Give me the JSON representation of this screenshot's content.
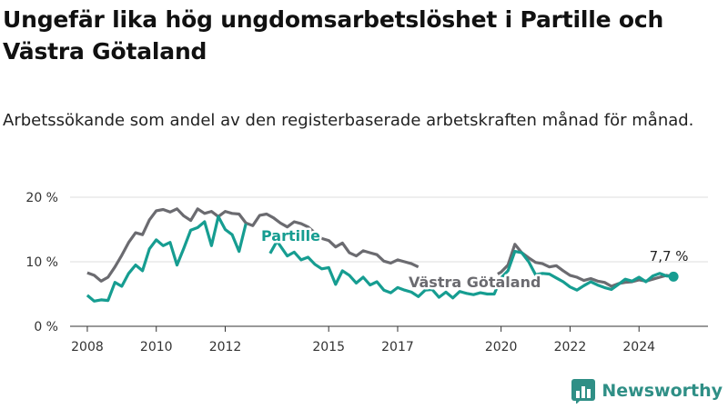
{
  "title": "Ungefär lika hög ungdomsarbetslöshet i Partille och Västra Götaland",
  "subtitle": "Arbetssökande som andel av den registerbaserade arbetskraften månad för månad.",
  "brand": {
    "name": "Newsworthy",
    "icon": "newsworthy-logo-icon"
  },
  "chart_data": {
    "type": "line",
    "x_unit": "year",
    "xlim": [
      2007.5,
      2026.0
    ],
    "ylim": [
      0,
      20
    ],
    "y_ticks": [
      0,
      10,
      20
    ],
    "y_tick_labels": [
      "0 %",
      "10 %",
      "20 %"
    ],
    "x_ticks": [
      2008,
      2010,
      2012,
      2015,
      2017,
      2020,
      2022,
      2024
    ],
    "x_tick_labels": [
      "2008",
      "2010",
      "2012",
      "2015",
      "2017",
      "2020",
      "2022",
      "2024"
    ],
    "grid": true,
    "end_label": "7,7 %",
    "series": [
      {
        "name": "Västra Götaland",
        "color": "#6b6b70",
        "points": [
          [
            2008.0,
            8.3
          ],
          [
            2008.2,
            7.9
          ],
          [
            2008.4,
            7.0
          ],
          [
            2008.6,
            7.6
          ],
          [
            2008.8,
            9.2
          ],
          [
            2009.0,
            11.0
          ],
          [
            2009.2,
            13.0
          ],
          [
            2009.4,
            14.5
          ],
          [
            2009.6,
            14.2
          ],
          [
            2009.8,
            16.5
          ],
          [
            2010.0,
            17.9
          ],
          [
            2010.2,
            18.1
          ],
          [
            2010.4,
            17.7
          ],
          [
            2010.6,
            18.2
          ],
          [
            2010.8,
            17.1
          ],
          [
            2011.0,
            16.4
          ],
          [
            2011.2,
            18.2
          ],
          [
            2011.4,
            17.5
          ],
          [
            2011.6,
            17.8
          ],
          [
            2011.8,
            17.0
          ],
          [
            2012.0,
            17.8
          ],
          [
            2012.2,
            17.5
          ],
          [
            2012.4,
            17.4
          ],
          [
            2012.6,
            16.0
          ],
          [
            2012.8,
            15.6
          ],
          [
            2013.0,
            17.2
          ],
          [
            2013.2,
            17.4
          ],
          [
            2013.4,
            16.8
          ],
          [
            2013.6,
            16.0
          ],
          [
            2013.8,
            15.4
          ],
          [
            2014.0,
            16.2
          ],
          [
            2014.2,
            15.9
          ],
          [
            2014.4,
            15.4
          ],
          [
            2014.6,
            14.5
          ],
          [
            2014.8,
            13.6
          ],
          [
            2015.0,
            13.3
          ],
          [
            2015.2,
            12.3
          ],
          [
            2015.4,
            12.9
          ],
          [
            2015.6,
            11.4
          ],
          [
            2015.8,
            10.9
          ],
          [
            2016.0,
            11.7
          ],
          [
            2016.2,
            11.4
          ],
          [
            2016.4,
            11.1
          ],
          [
            2016.6,
            10.1
          ],
          [
            2016.8,
            9.8
          ],
          [
            2017.0,
            10.3
          ],
          [
            2017.2,
            10.0
          ],
          [
            2017.4,
            9.7
          ],
          [
            2017.6,
            9.2
          ]
        ],
        "points_2": [
          [
            2019.9,
            8.1
          ],
          [
            2020.0,
            8.4
          ],
          [
            2020.2,
            9.5
          ],
          [
            2020.4,
            12.7
          ],
          [
            2020.6,
            11.4
          ],
          [
            2020.8,
            10.6
          ],
          [
            2021.0,
            9.9
          ],
          [
            2021.2,
            9.7
          ],
          [
            2021.4,
            9.2
          ],
          [
            2021.6,
            9.4
          ],
          [
            2021.8,
            8.6
          ],
          [
            2022.0,
            7.9
          ],
          [
            2022.2,
            7.6
          ],
          [
            2022.4,
            7.1
          ],
          [
            2022.6,
            7.4
          ],
          [
            2022.8,
            7.0
          ],
          [
            2023.0,
            6.8
          ],
          [
            2023.2,
            6.2
          ],
          [
            2023.4,
            6.6
          ],
          [
            2023.6,
            6.8
          ],
          [
            2023.8,
            6.9
          ],
          [
            2024.0,
            7.2
          ],
          [
            2024.2,
            7.0
          ],
          [
            2024.4,
            7.3
          ],
          [
            2024.6,
            7.6
          ],
          [
            2024.8,
            7.9
          ],
          [
            2025.0,
            7.7
          ]
        ]
      },
      {
        "name": "Partille",
        "color": "#169d91",
        "points": [
          [
            2008.0,
            4.8
          ],
          [
            2008.2,
            3.9
          ],
          [
            2008.4,
            4.1
          ],
          [
            2008.6,
            4.0
          ],
          [
            2008.8,
            6.8
          ],
          [
            2009.0,
            6.2
          ],
          [
            2009.2,
            8.2
          ],
          [
            2009.4,
            9.5
          ],
          [
            2009.6,
            8.6
          ],
          [
            2009.8,
            12.0
          ],
          [
            2010.0,
            13.4
          ],
          [
            2010.2,
            12.5
          ],
          [
            2010.4,
            13.0
          ],
          [
            2010.6,
            9.5
          ],
          [
            2010.8,
            12.1
          ],
          [
            2011.0,
            14.9
          ],
          [
            2011.2,
            15.3
          ],
          [
            2011.4,
            16.2
          ],
          [
            2011.6,
            12.5
          ],
          [
            2011.8,
            17.0
          ],
          [
            2012.0,
            15.0
          ],
          [
            2012.2,
            14.2
          ],
          [
            2012.4,
            11.6
          ],
          [
            2012.6,
            15.9
          ],
          [
            2013.3,
            11.3
          ],
          [
            2013.5,
            13.2
          ],
          [
            2013.8,
            10.9
          ],
          [
            2014.0,
            11.5
          ],
          [
            2014.2,
            10.3
          ],
          [
            2014.4,
            10.7
          ],
          [
            2014.6,
            9.6
          ],
          [
            2014.8,
            8.9
          ],
          [
            2015.0,
            9.1
          ],
          [
            2015.2,
            6.5
          ],
          [
            2015.4,
            8.6
          ],
          [
            2015.6,
            7.9
          ],
          [
            2015.8,
            6.7
          ],
          [
            2016.0,
            7.6
          ],
          [
            2016.2,
            6.4
          ],
          [
            2016.4,
            6.9
          ],
          [
            2016.6,
            5.6
          ],
          [
            2016.8,
            5.2
          ],
          [
            2017.0,
            6.0
          ],
          [
            2017.2,
            5.6
          ],
          [
            2017.4,
            5.3
          ],
          [
            2017.6,
            4.6
          ],
          [
            2017.8,
            5.6
          ],
          [
            2018.0,
            5.7
          ],
          [
            2018.2,
            4.5
          ],
          [
            2018.4,
            5.3
          ],
          [
            2018.6,
            4.4
          ],
          [
            2018.8,
            5.4
          ],
          [
            2019.0,
            5.1
          ],
          [
            2019.2,
            4.9
          ],
          [
            2019.4,
            5.2
          ],
          [
            2019.6,
            5.0
          ],
          [
            2019.8,
            5.0
          ],
          [
            2020.0,
            7.5
          ],
          [
            2020.2,
            8.6
          ],
          [
            2020.4,
            11.6
          ],
          [
            2020.6,
            11.4
          ],
          [
            2020.8,
            10.0
          ],
          [
            2021.0,
            8.0
          ],
          [
            2021.2,
            8.2
          ],
          [
            2021.4,
            8.1
          ],
          [
            2021.6,
            7.5
          ],
          [
            2021.8,
            6.9
          ],
          [
            2022.0,
            6.1
          ],
          [
            2022.2,
            5.6
          ],
          [
            2022.4,
            6.3
          ],
          [
            2022.6,
            6.9
          ],
          [
            2022.8,
            6.4
          ],
          [
            2023.0,
            6.0
          ],
          [
            2023.2,
            5.7
          ],
          [
            2023.4,
            6.5
          ],
          [
            2023.6,
            7.3
          ],
          [
            2023.8,
            7.0
          ],
          [
            2024.0,
            7.6
          ],
          [
            2024.2,
            6.9
          ],
          [
            2024.4,
            7.8
          ],
          [
            2024.6,
            8.2
          ],
          [
            2024.8,
            7.8
          ],
          [
            2025.0,
            7.7
          ]
        ]
      }
    ]
  }
}
